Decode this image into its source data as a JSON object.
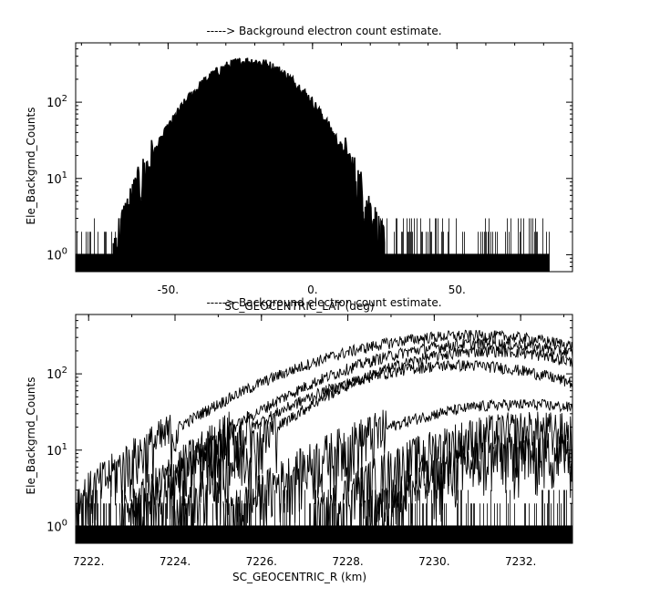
{
  "chart_data": [
    {
      "type": "line",
      "title": "-----> Background electron count estimate.",
      "xlabel": "SC_GEOCENTRIC_LAT (deg)",
      "ylabel": "Ele_Backgrnd_Counts",
      "xlim": [
        -82,
        90
      ],
      "ylim": [
        0.6,
        600
      ],
      "y_scale": "log",
      "x_ticks": [
        -50,
        0,
        50
      ],
      "x_tick_labels": [
        "-50.",
        "0.",
        "50."
      ],
      "y_ticks": [
        1,
        10,
        100
      ],
      "y_tick_labels": [
        "10^0",
        "10^1",
        "10^2"
      ],
      "grid": false,
      "noise_floor_range": [
        -82,
        82
      ],
      "series": [
        {
          "center": -22,
          "width": 14,
          "peak": 340
        },
        {
          "center": -21,
          "width": 13,
          "peak": 280
        },
        {
          "center": -19,
          "width": 12,
          "peak": 230
        },
        {
          "center": -18,
          "width": 11,
          "peak": 120
        },
        {
          "center": -19,
          "width": 9,
          "peak": 45
        },
        {
          "center": -20,
          "width": 8,
          "peak": 30
        },
        {
          "center": -21,
          "width": 6,
          "peak": 15
        }
      ]
    },
    {
      "type": "line",
      "title": "-----> Background electron count estimate.",
      "xlabel": "SC_GEOCENTRIC_R (km)",
      "ylabel": "Ele_Backgrnd_Counts",
      "xlim": [
        7221.7,
        7233.2
      ],
      "ylim": [
        0.6,
        600
      ],
      "y_scale": "log",
      "x_ticks": [
        7222,
        7224,
        7226,
        7228,
        7230,
        7232
      ],
      "x_tick_labels": [
        "7222.",
        "7224.",
        "7226.",
        "7228.",
        "7230.",
        "7232."
      ],
      "y_ticks": [
        1,
        10,
        100
      ],
      "y_tick_labels": [
        "10^0",
        "10^1",
        "10^2"
      ],
      "grid": false,
      "noise_floor_range": [
        7221.7,
        7233.2
      ],
      "series": [
        {
          "center": 7230.9,
          "width": 2.9,
          "peak": 320
        },
        {
          "center": 7231.2,
          "width": 2.6,
          "peak": 250
        },
        {
          "center": 7231.3,
          "width": 2.3,
          "peak": 200
        },
        {
          "center": 7230.6,
          "width": 2.5,
          "peak": 130
        },
        {
          "center": 7232.0,
          "width": 2.6,
          "peak": 40
        },
        {
          "center": 7232.3,
          "width": 2.2,
          "peak": 18
        },
        {
          "center": 7232.5,
          "width": 2.0,
          "peak": 10
        }
      ]
    }
  ]
}
